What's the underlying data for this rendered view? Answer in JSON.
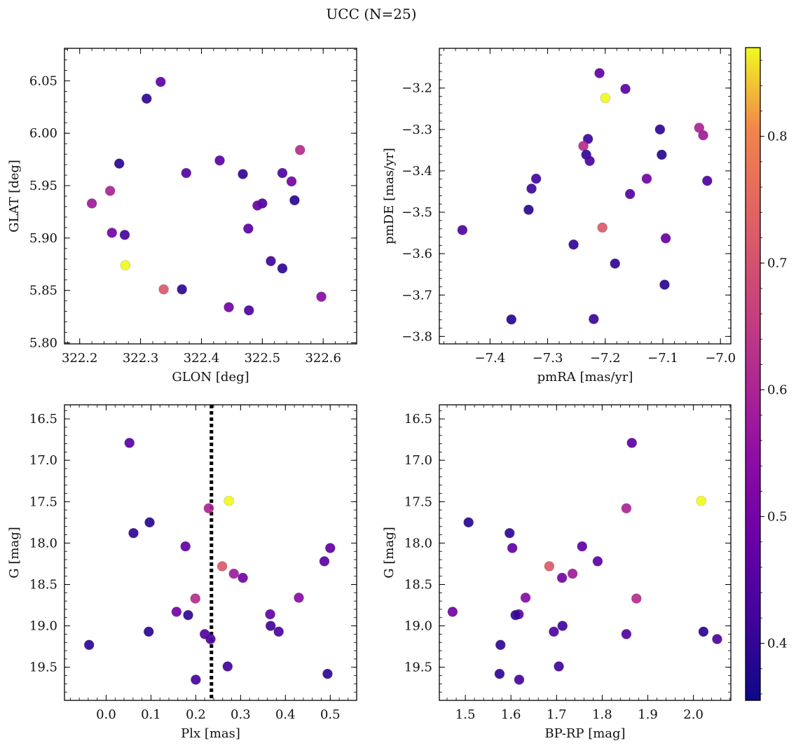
{
  "figure_title": "UCC (N=25)",
  "chart_data": [
    {
      "type": "scatter",
      "id": "glon-glat",
      "xlabel": "GLON [deg]",
      "ylabel": "GLAT [deg]",
      "xlim": [
        322.175,
        322.655
      ],
      "ylim": [
        5.799,
        6.081
      ],
      "xticks": [
        322.2,
        322.3,
        322.4,
        322.5,
        322.6
      ],
      "xticklabels": [
        "322.2",
        "322.3",
        "322.4",
        "322.5",
        "322.6"
      ],
      "yticks": [
        5.8,
        5.85,
        5.9,
        5.95,
        6.0,
        6.05
      ],
      "yticklabels": [
        "5.80",
        "5.85",
        "5.90",
        "5.95",
        "6.00",
        "6.05"
      ],
      "xminor": 0.02,
      "yminor": 0.01,
      "points": [
        {
          "x": 322.333,
          "y": 6.049,
          "c": 0.47
        },
        {
          "x": 322.31,
          "y": 6.033,
          "c": 0.4
        },
        {
          "x": 322.562,
          "y": 5.984,
          "c": 0.62
        },
        {
          "x": 322.43,
          "y": 5.974,
          "c": 0.46
        },
        {
          "x": 322.265,
          "y": 5.971,
          "c": 0.39
        },
        {
          "x": 322.375,
          "y": 5.962,
          "c": 0.45
        },
        {
          "x": 322.468,
          "y": 5.961,
          "c": 0.4
        },
        {
          "x": 322.533,
          "y": 5.962,
          "c": 0.44
        },
        {
          "x": 322.548,
          "y": 5.954,
          "c": 0.5
        },
        {
          "x": 322.25,
          "y": 5.945,
          "c": 0.6
        },
        {
          "x": 322.22,
          "y": 5.933,
          "c": 0.58
        },
        {
          "x": 322.553,
          "y": 5.936,
          "c": 0.39
        },
        {
          "x": 322.5,
          "y": 5.933,
          "c": 0.44
        },
        {
          "x": 322.492,
          "y": 5.931,
          "c": 0.48
        },
        {
          "x": 322.477,
          "y": 5.909,
          "c": 0.46
        },
        {
          "x": 322.253,
          "y": 5.905,
          "c": 0.5
        },
        {
          "x": 322.274,
          "y": 5.903,
          "c": 0.43
        },
        {
          "x": 322.514,
          "y": 5.878,
          "c": 0.42
        },
        {
          "x": 322.275,
          "y": 5.874,
          "c": 0.87
        },
        {
          "x": 322.533,
          "y": 5.871,
          "c": 0.4
        },
        {
          "x": 322.338,
          "y": 5.851,
          "c": 0.72
        },
        {
          "x": 322.368,
          "y": 5.851,
          "c": 0.4
        },
        {
          "x": 322.597,
          "y": 5.844,
          "c": 0.54
        },
        {
          "x": 322.445,
          "y": 5.834,
          "c": 0.5
        },
        {
          "x": 322.478,
          "y": 5.831,
          "c": 0.44
        }
      ]
    },
    {
      "type": "scatter",
      "id": "pmra-pmde",
      "xlabel": "pmRA [mas/yr]",
      "ylabel": "pmDE [mas/yr]",
      "xlim": [
        -7.488,
        -6.982
      ],
      "ylim": [
        -3.818,
        -3.104
      ],
      "xticks": [
        -7.4,
        -7.3,
        -7.2,
        -7.1,
        -7.0
      ],
      "xticklabels": [
        "−7.4",
        "−7.3",
        "−7.2",
        "−7.1",
        "−7.0"
      ],
      "yticks": [
        -3.8,
        -3.7,
        -3.6,
        -3.5,
        -3.4,
        -3.3,
        -3.2
      ],
      "yticklabels": [
        "−3.8",
        "−3.7",
        "−3.6",
        "−3.5",
        "−3.4",
        "−3.3",
        "−3.2"
      ],
      "xminor": 0.02,
      "yminor": 0.02,
      "points": [
        {
          "x": -7.21,
          "y": -3.164,
          "c": 0.47
        },
        {
          "x": -7.165,
          "y": -3.202,
          "c": 0.46
        },
        {
          "x": -7.2,
          "y": -3.224,
          "c": 0.87
        },
        {
          "x": -7.037,
          "y": -3.296,
          "c": 0.6
        },
        {
          "x": -7.105,
          "y": -3.3,
          "c": 0.4
        },
        {
          "x": -7.03,
          "y": -3.314,
          "c": 0.58
        },
        {
          "x": -7.23,
          "y": -3.323,
          "c": 0.42
        },
        {
          "x": -7.238,
          "y": -3.34,
          "c": 0.62
        },
        {
          "x": -7.233,
          "y": -3.361,
          "c": 0.4
        },
        {
          "x": -7.102,
          "y": -3.361,
          "c": 0.39
        },
        {
          "x": -7.227,
          "y": -3.376,
          "c": 0.44
        },
        {
          "x": -7.32,
          "y": -3.419,
          "c": 0.43
        },
        {
          "x": -7.128,
          "y": -3.419,
          "c": 0.5
        },
        {
          "x": -7.023,
          "y": -3.424,
          "c": 0.44
        },
        {
          "x": -7.328,
          "y": -3.443,
          "c": 0.42
        },
        {
          "x": -7.157,
          "y": -3.456,
          "c": 0.45
        },
        {
          "x": -7.333,
          "y": -3.494,
          "c": 0.39
        },
        {
          "x": -7.205,
          "y": -3.537,
          "c": 0.72
        },
        {
          "x": -7.448,
          "y": -3.543,
          "c": 0.44
        },
        {
          "x": -7.095,
          "y": -3.563,
          "c": 0.48
        },
        {
          "x": -7.255,
          "y": -3.578,
          "c": 0.4
        },
        {
          "x": -7.183,
          "y": -3.624,
          "c": 0.4
        },
        {
          "x": -7.097,
          "y": -3.675,
          "c": 0.39
        },
        {
          "x": -7.363,
          "y": -3.759,
          "c": 0.39
        },
        {
          "x": -7.22,
          "y": -3.758,
          "c": 0.41
        }
      ]
    },
    {
      "type": "scatter",
      "id": "plx-g",
      "xlabel": "Plx [mas]",
      "ylabel": "G [mag]",
      "xlim": [
        -0.093,
        0.559
      ],
      "ylim": [
        16.33,
        19.9
      ],
      "yinverted": true,
      "xticks": [
        0.0,
        0.1,
        0.2,
        0.3,
        0.4,
        0.5
      ],
      "xticklabels": [
        "0.0",
        "0.1",
        "0.2",
        "0.3",
        "0.4",
        "0.5"
      ],
      "yticks": [
        16.5,
        17.0,
        17.5,
        18.0,
        18.5,
        19.0,
        19.5
      ],
      "yticklabels": [
        "16.5",
        "17.0",
        "17.5",
        "18.0",
        "18.5",
        "19.0",
        "19.5"
      ],
      "xminor": 0.02,
      "yminor": 0.1,
      "vline": 0.235,
      "points": [
        {
          "x": 0.052,
          "y": 16.79,
          "c": 0.46
        },
        {
          "x": 0.274,
          "y": 17.49,
          "c": 0.87
        },
        {
          "x": 0.229,
          "y": 17.58,
          "c": 0.6
        },
        {
          "x": 0.097,
          "y": 17.75,
          "c": 0.39
        },
        {
          "x": 0.061,
          "y": 17.88,
          "c": 0.4
        },
        {
          "x": 0.177,
          "y": 18.04,
          "c": 0.47
        },
        {
          "x": 0.5,
          "y": 18.06,
          "c": 0.47
        },
        {
          "x": 0.487,
          "y": 18.22,
          "c": 0.46
        },
        {
          "x": 0.259,
          "y": 18.28,
          "c": 0.72
        },
        {
          "x": 0.285,
          "y": 18.37,
          "c": 0.58
        },
        {
          "x": 0.305,
          "y": 18.42,
          "c": 0.5
        },
        {
          "x": 0.43,
          "y": 18.66,
          "c": 0.54
        },
        {
          "x": 0.199,
          "y": 18.67,
          "c": 0.62
        },
        {
          "x": 0.157,
          "y": 18.83,
          "c": 0.5
        },
        {
          "x": 0.366,
          "y": 18.86,
          "c": 0.47
        },
        {
          "x": 0.183,
          "y": 18.87,
          "c": 0.4
        },
        {
          "x": 0.367,
          "y": 19.0,
          "c": 0.42
        },
        {
          "x": 0.095,
          "y": 19.07,
          "c": 0.39
        },
        {
          "x": 0.385,
          "y": 19.07,
          "c": 0.44
        },
        {
          "x": 0.22,
          "y": 19.1,
          "c": 0.45
        },
        {
          "x": 0.233,
          "y": 19.16,
          "c": 0.44
        },
        {
          "x": -0.038,
          "y": 19.23,
          "c": 0.4
        },
        {
          "x": 0.271,
          "y": 19.49,
          "c": 0.42
        },
        {
          "x": 0.494,
          "y": 19.58,
          "c": 0.4
        },
        {
          "x": 0.2,
          "y": 19.65,
          "c": 0.43
        }
      ]
    },
    {
      "type": "scatter",
      "id": "bprp-g",
      "xlabel": "BP-RP [mag]",
      "ylabel": "G [mag]",
      "xlim": [
        1.443,
        2.082
      ],
      "ylim": [
        16.33,
        19.9
      ],
      "yinverted": true,
      "xticks": [
        1.5,
        1.6,
        1.7,
        1.8,
        1.9,
        2.0
      ],
      "xticklabels": [
        "1.5",
        "1.6",
        "1.7",
        "1.8",
        "1.9",
        "2.0"
      ],
      "yticks": [
        16.5,
        17.0,
        17.5,
        18.0,
        18.5,
        19.0,
        19.5
      ],
      "yticklabels": [
        "16.5",
        "17.0",
        "17.5",
        "18.0",
        "18.5",
        "19.0",
        "19.5"
      ],
      "xminor": 0.02,
      "yminor": 0.1,
      "points": [
        {
          "x": 1.865,
          "y": 16.79,
          "c": 0.46
        },
        {
          "x": 2.017,
          "y": 17.49,
          "c": 0.87
        },
        {
          "x": 1.853,
          "y": 17.58,
          "c": 0.6
        },
        {
          "x": 1.507,
          "y": 17.75,
          "c": 0.39
        },
        {
          "x": 1.597,
          "y": 17.88,
          "c": 0.4
        },
        {
          "x": 1.603,
          "y": 18.06,
          "c": 0.47
        },
        {
          "x": 1.756,
          "y": 18.04,
          "c": 0.47
        },
        {
          "x": 1.79,
          "y": 18.22,
          "c": 0.46
        },
        {
          "x": 1.684,
          "y": 18.28,
          "c": 0.72
        },
        {
          "x": 1.735,
          "y": 18.37,
          "c": 0.58
        },
        {
          "x": 1.712,
          "y": 18.42,
          "c": 0.5
        },
        {
          "x": 1.632,
          "y": 18.66,
          "c": 0.54
        },
        {
          "x": 1.875,
          "y": 18.67,
          "c": 0.62
        },
        {
          "x": 1.472,
          "y": 18.83,
          "c": 0.5
        },
        {
          "x": 1.617,
          "y": 18.86,
          "c": 0.47
        },
        {
          "x": 1.61,
          "y": 18.87,
          "c": 0.4
        },
        {
          "x": 1.713,
          "y": 19.0,
          "c": 0.42
        },
        {
          "x": 2.022,
          "y": 19.07,
          "c": 0.39
        },
        {
          "x": 1.694,
          "y": 19.07,
          "c": 0.44
        },
        {
          "x": 1.853,
          "y": 19.1,
          "c": 0.45
        },
        {
          "x": 2.052,
          "y": 19.16,
          "c": 0.44
        },
        {
          "x": 1.577,
          "y": 19.23,
          "c": 0.4
        },
        {
          "x": 1.705,
          "y": 19.49,
          "c": 0.42
        },
        {
          "x": 1.575,
          "y": 19.58,
          "c": 0.4
        },
        {
          "x": 1.618,
          "y": 19.65,
          "c": 0.43
        }
      ]
    }
  ],
  "colorbar": {
    "cmap": "plasma",
    "vmin": 0.355,
    "vmax": 0.87,
    "ticks": [
      0.4,
      0.5,
      0.6,
      0.7,
      0.8
    ],
    "ticklabels": [
      "0.4",
      "0.5",
      "0.6",
      "0.7",
      "0.8"
    ]
  }
}
